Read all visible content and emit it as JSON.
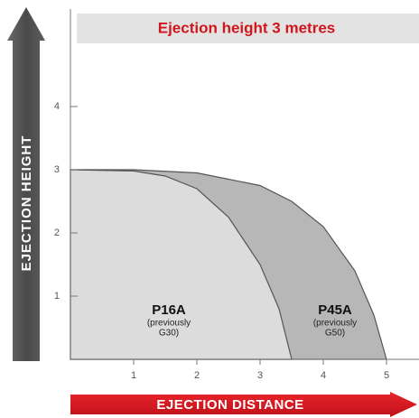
{
  "chart_data": {
    "type": "area",
    "title": "Ejection height 3 metres",
    "ylabel": "EJECTION HEIGHT",
    "xlabel": "EJECTION DISTANCE",
    "xlim": [
      0,
      5.5
    ],
    "xticks": [
      1,
      2,
      3,
      4,
      5
    ],
    "ylim": [
      0,
      5.5
    ],
    "yticks": [
      1,
      2,
      3,
      4
    ],
    "series": [
      {
        "name": "P45A",
        "sublabel": [
          "(previously",
          "G50)"
        ],
        "color": "#b7b7b7",
        "x": [
          0,
          1,
          2,
          3,
          3.5,
          4,
          4.5,
          4.8,
          5
        ],
        "values": [
          3,
          3,
          2.95,
          2.75,
          2.5,
          2.1,
          1.4,
          0.7,
          0
        ]
      },
      {
        "name": "P16A",
        "sublabel": [
          "(previously",
          "G30)"
        ],
        "color": "#dcdcdc",
        "x": [
          0,
          1,
          1.5,
          2,
          2.5,
          3,
          3.3,
          3.5
        ],
        "values": [
          3,
          2.98,
          2.9,
          2.7,
          2.25,
          1.5,
          0.8,
          0
        ]
      }
    ]
  }
}
